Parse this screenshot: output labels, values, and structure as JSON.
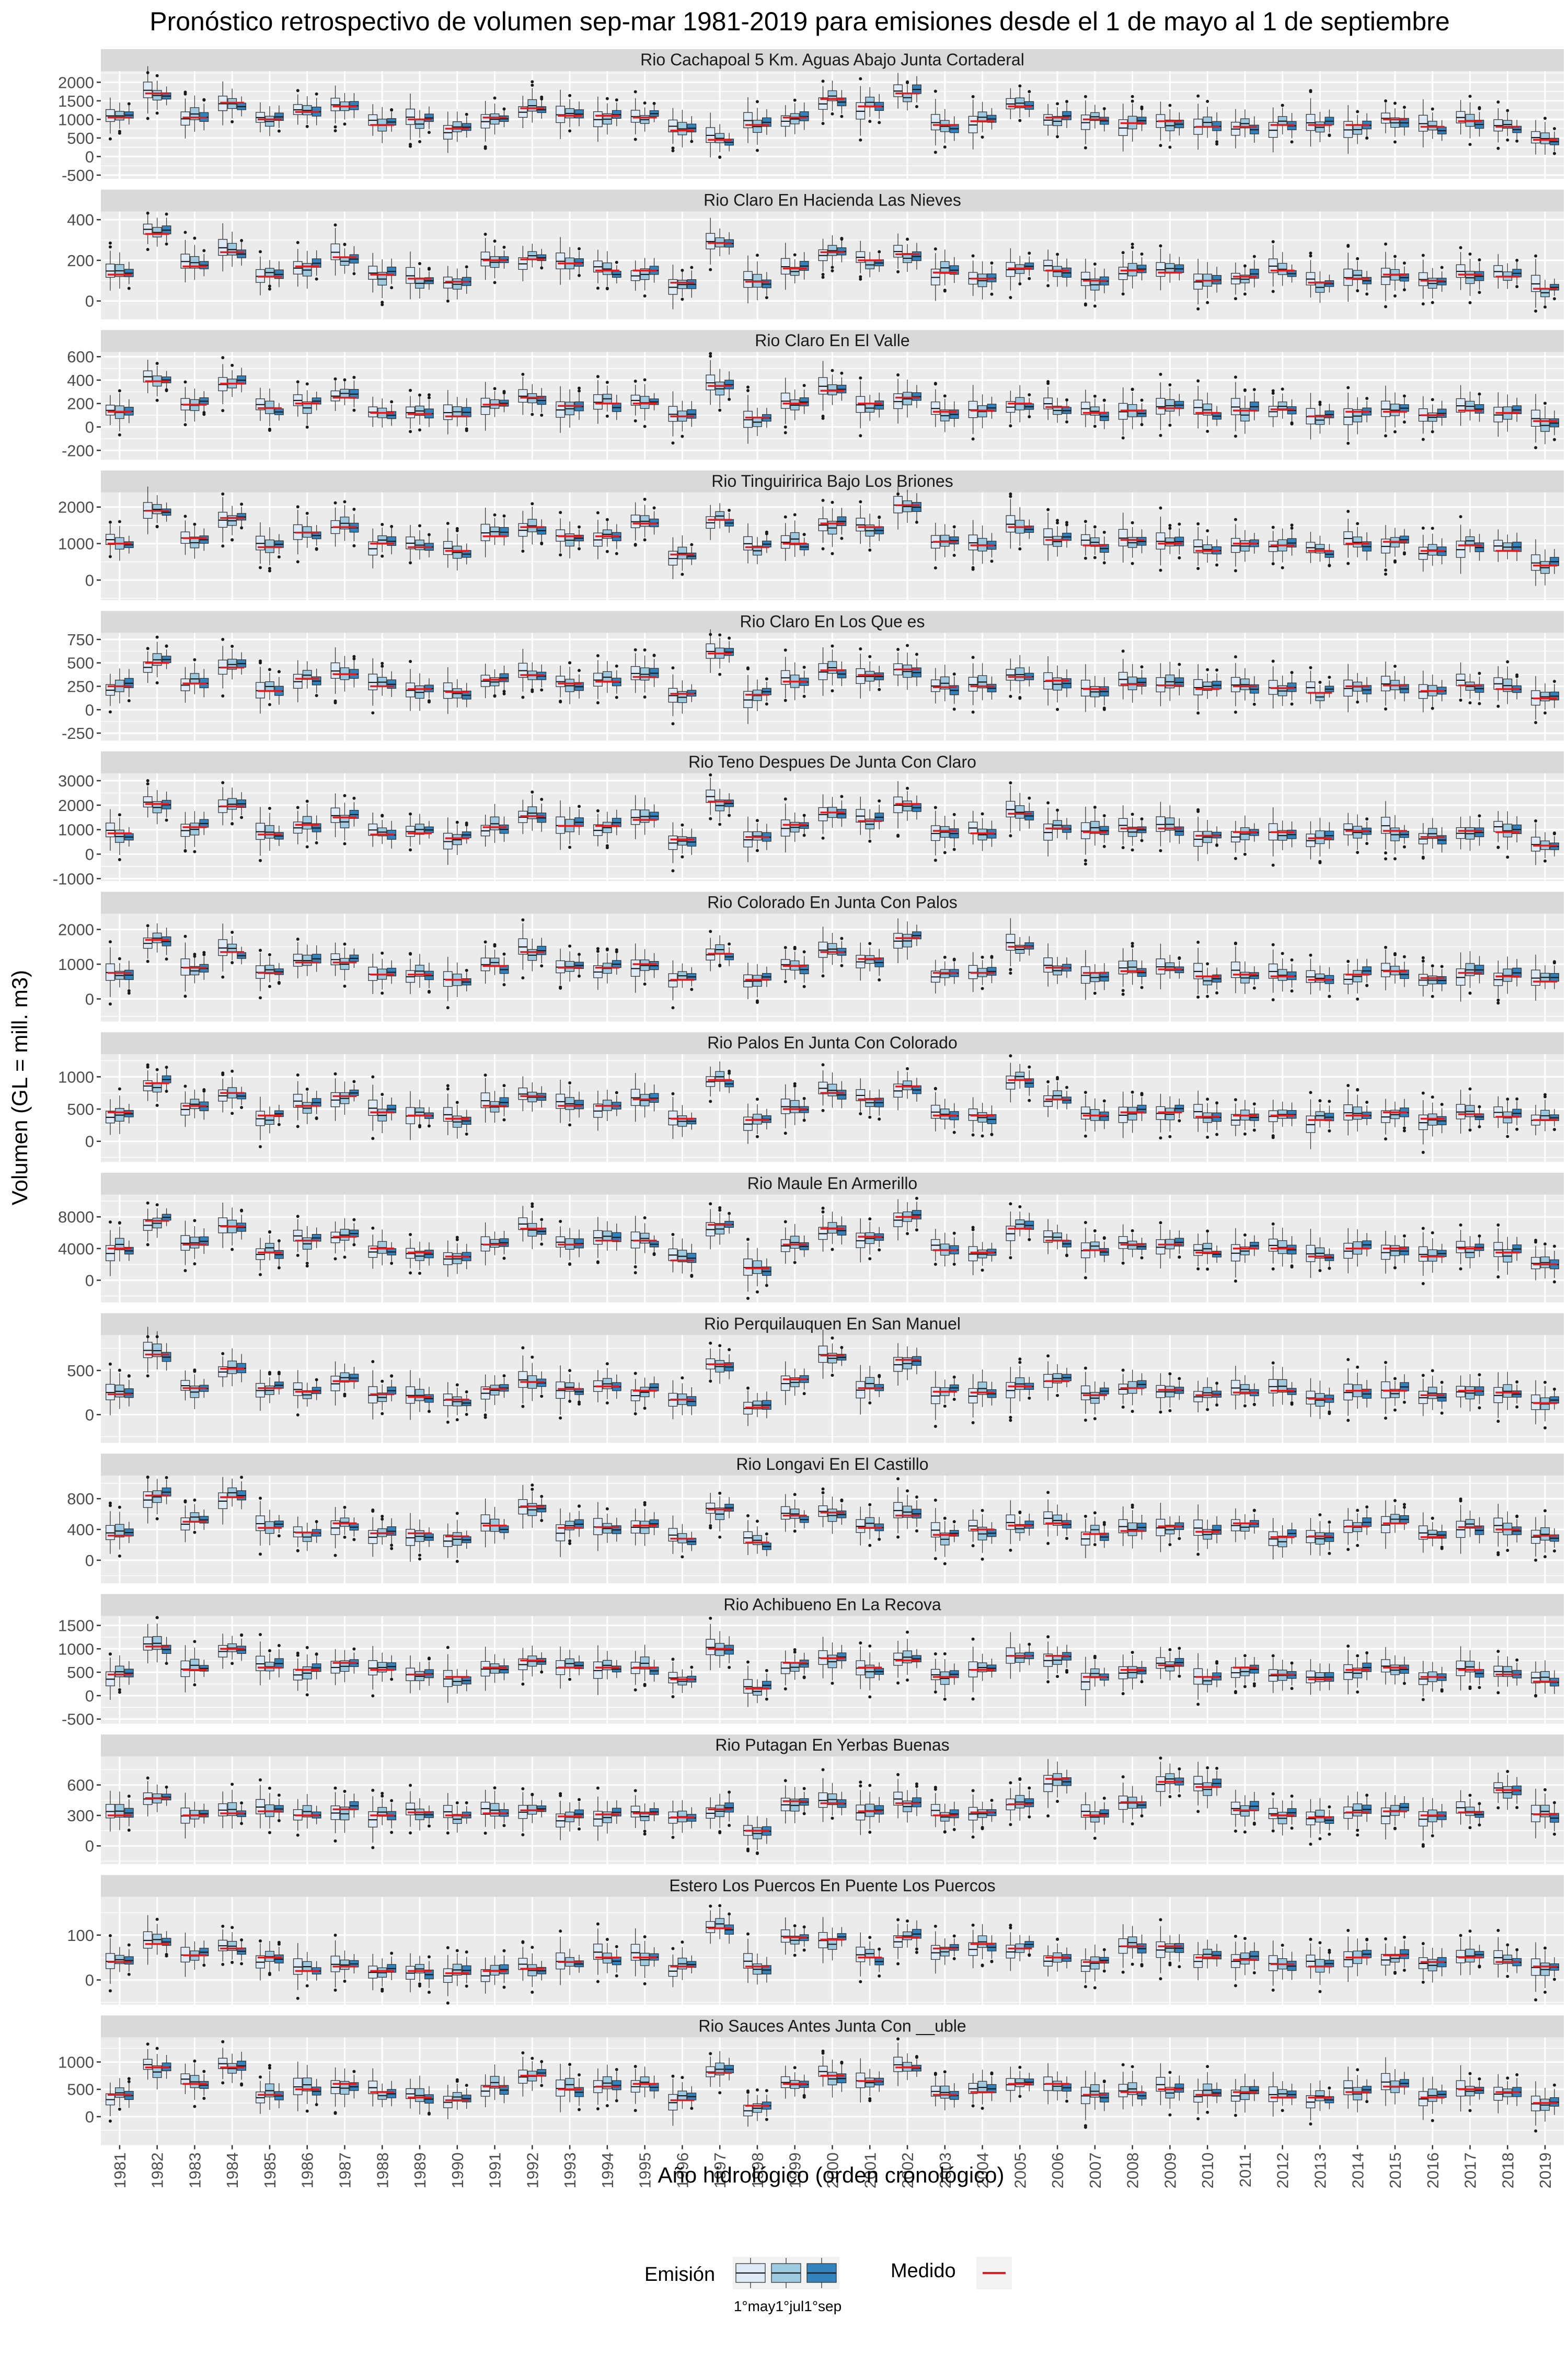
{
  "chart_data": {
    "type": "boxplot",
    "title": "Pronóstico retrospectivo de volumen sep-mar 1981-2019 para emisiones desde el 1 de mayo al 1 de septiembre",
    "xlabel": "Año hidrológico (orden cronológico)",
    "ylabel": "Volumen (GL = mill. m3)",
    "categories": [
      "1981",
      "1982",
      "1983",
      "1984",
      "1985",
      "1986",
      "1987",
      "1988",
      "1989",
      "1990",
      "1991",
      "1992",
      "1993",
      "1994",
      "1995",
      "1996",
      "1997",
      "1998",
      "1999",
      "2000",
      "2001",
      "2002",
      "2003",
      "2004",
      "2005",
      "2006",
      "2007",
      "2008",
      "2009",
      "2010",
      "2011",
      "2012",
      "2013",
      "2014",
      "2015",
      "2016",
      "2017",
      "2018",
      "2019"
    ],
    "legend": {
      "emision_title": "Emisión",
      "emision_labels": [
        "1°may",
        "1°jul",
        "1°sep"
      ],
      "emision_colors": [
        "#DEEBF7",
        "#9ECAE1",
        "#3182BD"
      ],
      "medido_title": "Medido",
      "medido_color": "#E41A1C",
      "placement": "bottom"
    },
    "facets": [
      {
        "name": "Rio Cachapoal 5 Km. Aguas Abajo Junta Cortaderal",
        "ylim": [
          -600,
          2300
        ],
        "yticks": [
          -500,
          0,
          500,
          1000,
          1500,
          2000
        ],
        "medido": [
          1050,
          1700,
          1050,
          1450,
          1000,
          1200,
          1350,
          850,
          1000,
          750,
          1050,
          1300,
          1100,
          1100,
          1050,
          700,
          450,
          850,
          1050,
          1550,
          1350,
          1700,
          850,
          950,
          1350,
          1050,
          1000,
          900,
          950,
          800,
          800,
          850,
          850,
          850,
          1000,
          800,
          950,
          800,
          450
        ]
      },
      {
        "name": "Rio Claro En Hacienda Las Nieves",
        "ylim": [
          -90,
          440
        ],
        "yticks": [
          0,
          200,
          400
        ],
        "medido": [
          130,
          330,
          170,
          240,
          120,
          170,
          215,
          130,
          110,
          95,
          200,
          205,
          185,
          150,
          150,
          90,
          285,
          95,
          160,
          240,
          200,
          230,
          140,
          110,
          160,
          150,
          100,
          150,
          140,
          100,
          120,
          150,
          90,
          110,
          130,
          100,
          130,
          120,
          60
        ]
      },
      {
        "name": "Rio Claro En El Valle",
        "ylim": [
          -280,
          640
        ],
        "yticks": [
          -200,
          0,
          200,
          400,
          600
        ],
        "medido": [
          130,
          390,
          190,
          370,
          160,
          200,
          250,
          120,
          110,
          90,
          190,
          250,
          180,
          200,
          200,
          90,
          350,
          80,
          200,
          310,
          200,
          250,
          130,
          140,
          200,
          170,
          120,
          140,
          160,
          120,
          140,
          150,
          90,
          130,
          130,
          100,
          140,
          120,
          50
        ]
      },
      {
        "name": "Rio Tinguiririca Bajo Los Briones",
        "ylim": [
          -550,
          2400
        ],
        "yticks": [
          0,
          1000,
          2000
        ],
        "medido": [
          1000,
          1900,
          1150,
          1700,
          900,
          1300,
          1450,
          1000,
          900,
          800,
          1200,
          1450,
          1200,
          1200,
          1550,
          700,
          1650,
          900,
          1000,
          1550,
          1450,
          2050,
          1050,
          950,
          1450,
          1100,
          950,
          1100,
          1000,
          800,
          1000,
          950,
          800,
          1000,
          1050,
          800,
          950,
          800,
          400
        ]
      },
      {
        "name": "Rio Claro En Los Que    es",
        "ylim": [
          -330,
          820
        ],
        "yticks": [
          -250,
          0,
          250,
          500,
          750
        ],
        "medido": [
          250,
          500,
          280,
          450,
          200,
          330,
          380,
          250,
          220,
          190,
          320,
          370,
          280,
          300,
          350,
          170,
          600,
          160,
          300,
          420,
          370,
          430,
          240,
          250,
          350,
          310,
          220,
          270,
          260,
          220,
          250,
          230,
          180,
          250,
          260,
          200,
          260,
          220,
          120
        ]
      },
      {
        "name": "Rio Teno Despues De Junta Con Claro",
        "ylim": [
          -1100,
          3300
        ],
        "yticks": [
          -1000,
          0,
          1000,
          2000,
          3000
        ],
        "medido": [
          850,
          2050,
          1100,
          1950,
          800,
          1200,
          1500,
          800,
          850,
          650,
          1100,
          1550,
          1150,
          1150,
          1400,
          600,
          2150,
          700,
          1200,
          1700,
          1350,
          2050,
          950,
          850,
          1650,
          1050,
          900,
          1050,
          1050,
          750,
          900,
          900,
          650,
          950,
          950,
          700,
          950,
          900,
          350
        ]
      },
      {
        "name": "Rio Colorado En Junta Con Palos",
        "ylim": [
          -650,
          2450
        ],
        "yticks": [
          0,
          1000,
          2000
        ],
        "medido": [
          750,
          1700,
          900,
          1350,
          750,
          1050,
          1050,
          700,
          700,
          550,
          950,
          1350,
          900,
          900,
          1000,
          550,
          1300,
          550,
          950,
          1350,
          1150,
          1750,
          750,
          750,
          1500,
          900,
          750,
          800,
          850,
          650,
          700,
          650,
          550,
          700,
          800,
          600,
          750,
          650,
          500
        ]
      },
      {
        "name": "Rio Palos En Junta Con Colorado",
        "ylim": [
          -320,
          1350
        ],
        "yticks": [
          0,
          500,
          1000
        ],
        "medido": [
          450,
          900,
          550,
          750,
          400,
          550,
          700,
          450,
          400,
          350,
          550,
          700,
          550,
          550,
          650,
          350,
          950,
          330,
          500,
          750,
          650,
          850,
          400,
          400,
          950,
          650,
          400,
          450,
          450,
          380,
          400,
          400,
          330,
          400,
          450,
          350,
          420,
          380,
          330
        ]
      },
      {
        "name": "Rio Maule En Armerillo",
        "ylim": [
          -2800,
          10800
        ],
        "yticks": [
          0,
          4000,
          8000
        ],
        "medido": [
          4000,
          7500,
          4500,
          6800,
          3500,
          5000,
          5500,
          4000,
          3500,
          3000,
          4500,
          6500,
          4500,
          5000,
          5000,
          2500,
          7000,
          1500,
          4500,
          6500,
          5500,
          8000,
          3800,
          3500,
          6500,
          5000,
          3800,
          4500,
          4500,
          3500,
          4000,
          4000,
          3000,
          4000,
          4000,
          3000,
          4000,
          3500,
          2000
        ]
      },
      {
        "name": "Rio Perquilauquen En San Manuel",
        "ylim": [
          -320,
          900
        ],
        "yticks": [
          0,
          500
        ],
        "medido": [
          230,
          680,
          300,
          520,
          300,
          260,
          380,
          230,
          200,
          170,
          290,
          370,
          290,
          320,
          270,
          170,
          570,
          80,
          400,
          670,
          300,
          620,
          260,
          250,
          320,
          380,
          220,
          300,
          280,
          220,
          250,
          270,
          180,
          270,
          270,
          220,
          270,
          250,
          130
        ]
      },
      {
        "name": "Rio Longavi En El Castillo",
        "ylim": [
          -300,
          1100
        ],
        "yticks": [
          0,
          400,
          800
        ],
        "medido": [
          320,
          840,
          500,
          820,
          420,
          360,
          480,
          350,
          350,
          310,
          450,
          700,
          420,
          430,
          450,
          280,
          660,
          230,
          580,
          620,
          420,
          580,
          330,
          400,
          450,
          480,
          340,
          380,
          440,
          370,
          480,
          300,
          310,
          440,
          480,
          300,
          430,
          400,
          320
        ]
      },
      {
        "name": "Rio Achibueno En La Recova",
        "ylim": [
          -600,
          1700
        ],
        "yticks": [
          -500,
          0,
          500,
          1000,
          1500
        ],
        "medido": [
          450,
          1050,
          550,
          1000,
          600,
          550,
          700,
          550,
          450,
          400,
          600,
          750,
          600,
          600,
          600,
          350,
          1000,
          150,
          700,
          800,
          600,
          750,
          400,
          550,
          850,
          850,
          400,
          550,
          650,
          400,
          600,
          450,
          350,
          550,
          600,
          400,
          550,
          450,
          300
        ]
      },
      {
        "name": "Rio Putagan En Yerbas Buenas",
        "ylim": [
          -180,
          880
        ],
        "yticks": [
          0,
          300,
          600
        ],
        "medido": [
          300,
          470,
          300,
          320,
          340,
          300,
          360,
          300,
          330,
          300,
          320,
          350,
          290,
          310,
          320,
          280,
          360,
          150,
          440,
          420,
          340,
          420,
          300,
          330,
          410,
          660,
          300,
          430,
          630,
          580,
          350,
          300,
          280,
          330,
          340,
          300,
          330,
          550,
          310
        ]
      },
      {
        "name": "Estero Los Puercos En Puente Los Puercos",
        "ylim": [
          -55,
          185
        ],
        "yticks": [
          0,
          100
        ],
        "medido": [
          40,
          80,
          55,
          70,
          50,
          20,
          30,
          20,
          20,
          15,
          20,
          25,
          40,
          50,
          50,
          30,
          115,
          30,
          95,
          90,
          50,
          95,
          70,
          80,
          70,
          50,
          40,
          75,
          75,
          50,
          45,
          35,
          30,
          50,
          55,
          40,
          50,
          40,
          30
        ]
      },
      {
        "name": "Rio Sauces Antes Junta Con __uble",
        "ylim": [
          -520,
          1450
        ],
        "yticks": [
          0,
          500,
          1000
        ],
        "medido": [
          400,
          900,
          600,
          900,
          400,
          500,
          600,
          450,
          350,
          300,
          550,
          750,
          500,
          550,
          600,
          300,
          800,
          200,
          600,
          750,
          650,
          900,
          400,
          450,
          600,
          600,
          400,
          450,
          500,
          400,
          450,
          350,
          350,
          450,
          550,
          350,
          500,
          450,
          250
        ]
      }
    ]
  }
}
